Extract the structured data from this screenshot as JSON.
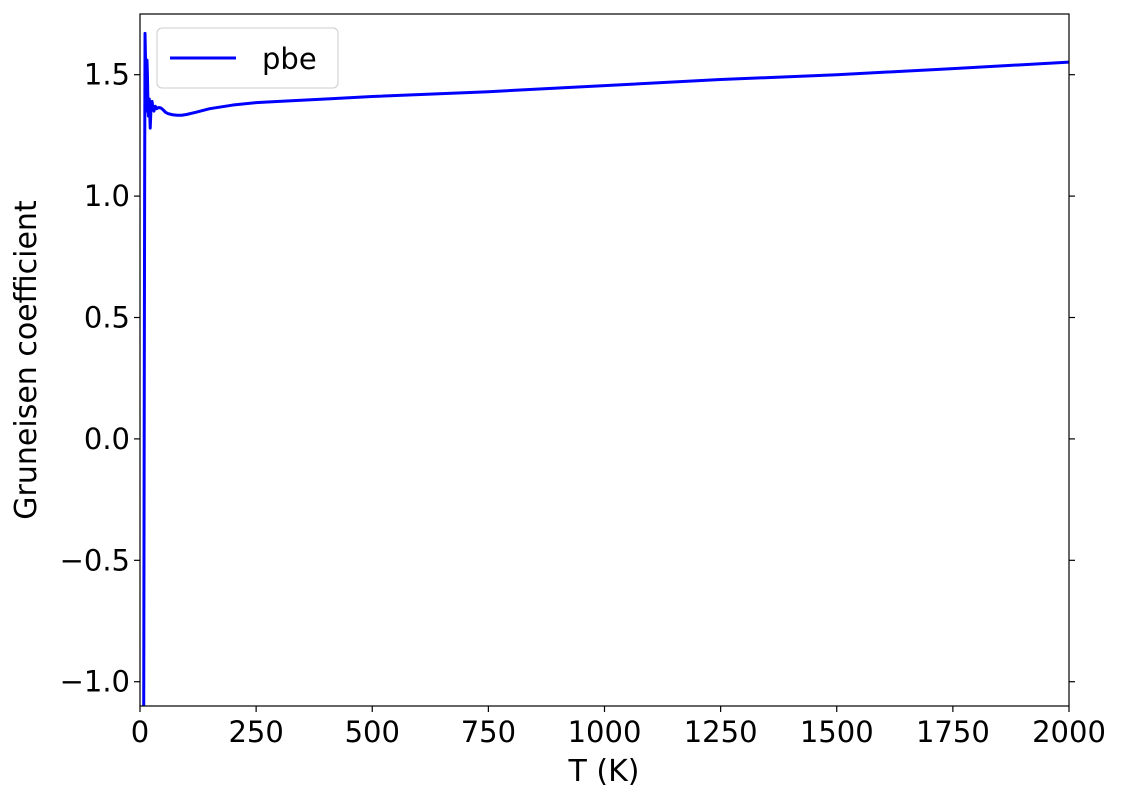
{
  "chart_data": {
    "type": "line",
    "title": "",
    "xlabel": "T (K)",
    "ylabel": "Gruneisen coefficient",
    "xlim": [
      0,
      2000
    ],
    "ylim": [
      -1.1,
      1.75
    ],
    "xticks": [
      0,
      250,
      500,
      750,
      1000,
      1250,
      1500,
      1750,
      2000
    ],
    "xtick_labels": [
      "0",
      "250",
      "500",
      "750",
      "1000",
      "1250",
      "1500",
      "1750",
      "2000"
    ],
    "yticks": [
      -1.0,
      -0.5,
      0.0,
      0.5,
      1.0,
      1.5
    ],
    "ytick_labels": [
      "−1.0",
      "−0.5",
      "0.0",
      "0.5",
      "1.0",
      "1.5"
    ],
    "grid": false,
    "legend_position": "top-left",
    "series": [
      {
        "name": "pbe",
        "color": "#0000ff",
        "x": [
          8,
          9,
          10,
          10.8,
          12,
          13,
          14,
          15,
          16,
          17,
          18,
          19,
          20,
          22,
          24,
          26,
          28,
          30,
          33,
          36,
          40,
          45,
          50,
          55,
          60,
          70,
          80,
          90,
          100,
          120,
          150,
          200,
          250,
          300,
          400,
          500,
          750,
          1000,
          1250,
          1500,
          1750,
          2000
        ],
        "y": [
          -1.1,
          0.0,
          1.05,
          1.67,
          1.55,
          1.35,
          1.48,
          1.56,
          1.5,
          1.39,
          1.33,
          1.37,
          1.4,
          1.28,
          1.38,
          1.39,
          1.36,
          1.35,
          1.37,
          1.36,
          1.365,
          1.363,
          1.355,
          1.345,
          1.34,
          1.335,
          1.333,
          1.333,
          1.336,
          1.345,
          1.36,
          1.375,
          1.385,
          1.39,
          1.4,
          1.41,
          1.43,
          1.455,
          1.48,
          1.5,
          1.525,
          1.552
        ]
      }
    ]
  }
}
